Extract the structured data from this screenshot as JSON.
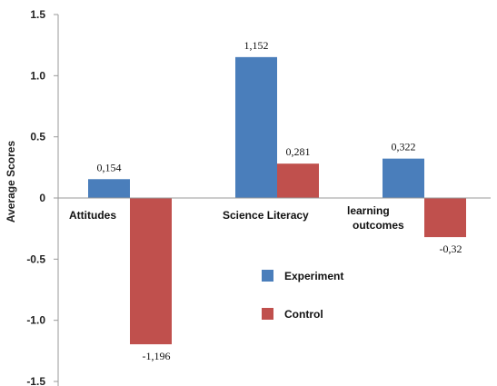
{
  "chart_data": {
    "type": "bar",
    "title": "",
    "xlabel": "",
    "ylabel": "Average Scores",
    "ylim": [
      -1.5,
      1.5
    ],
    "yticks": [
      {
        "value": 1.5,
        "label": "1.5"
      },
      {
        "value": 1.0,
        "label": "1.0"
      },
      {
        "value": 0.5,
        "label": "0.5"
      },
      {
        "value": 0,
        "label": "0"
      },
      {
        "value": -0.5,
        "label": "-0.5"
      },
      {
        "value": -1.0,
        "label": "-1.0"
      },
      {
        "value": -1.5,
        "label": "-1.5"
      }
    ],
    "grid": false,
    "legend_position": "lower-right",
    "categories": [
      {
        "label_lines": [
          "Attitudes"
        ]
      },
      {
        "label_lines": [
          "Science Literacy"
        ]
      },
      {
        "label_lines": [
          "learning",
          "outcomes"
        ]
      }
    ],
    "series": [
      {
        "name": "Experiment",
        "color": "#4a7ebb",
        "values": [
          0.154,
          1.152,
          0.322
        ],
        "labels": [
          "0,154",
          "1,152",
          "0,322"
        ]
      },
      {
        "name": "Control",
        "color": "#c0504d",
        "values": [
          -1.196,
          0.281,
          -0.32
        ],
        "labels": [
          "-1,196",
          "0,281",
          "-0,32"
        ]
      }
    ]
  }
}
